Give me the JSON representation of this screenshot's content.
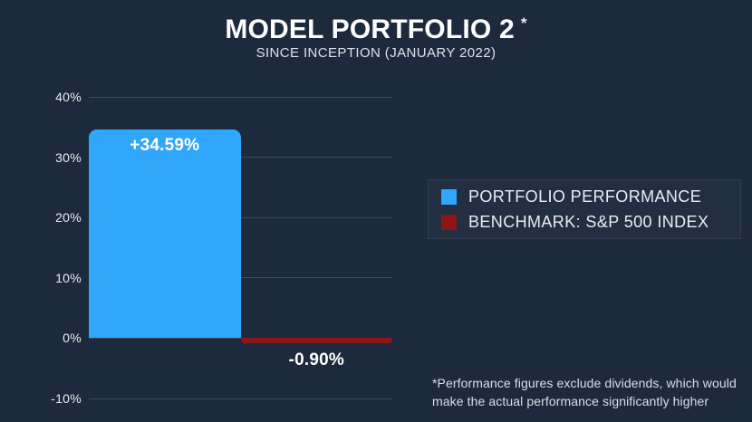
{
  "theme": {
    "background": "#1D2A3E",
    "portfolio_color": "#31A7FB",
    "benchmark_color": "#8E1518",
    "gridline_color": "#3E4A5F",
    "text_color": "#FFFFFF"
  },
  "header": {
    "title": "MODEL PORTFOLIO 2",
    "title_asterisk": "*",
    "subtitle": "SINCE INCEPTION (JANUARY 2022)"
  },
  "chart_data": {
    "type": "bar",
    "categories": [
      "PORTFOLIO PERFORMANCE",
      "BENCHMARK: S&P 500 INDEX"
    ],
    "values": [
      34.59,
      -0.9
    ],
    "value_labels": [
      "+34.59%",
      "-0.90%"
    ],
    "colors": [
      "#31A7FB",
      "#8E1518"
    ],
    "title": "MODEL PORTFOLIO 2",
    "subtitle": "SINCE INCEPTION (JANUARY 2022)",
    "xlabel": "",
    "ylabel": "",
    "y_axis": {
      "min": -10,
      "max": 40,
      "ticks": [
        "40%",
        "30%",
        "20%",
        "10%",
        "0%",
        "-10%"
      ],
      "tick_values": [
        40,
        30,
        20,
        10,
        0,
        -10
      ]
    },
    "grid": true,
    "legend_position": "right"
  },
  "legend": {
    "items": [
      {
        "label": "PORTFOLIO PERFORMANCE",
        "color": "#31A7FB"
      },
      {
        "label": "BENCHMARK: S&P 500 INDEX",
        "color": "#8E1518"
      }
    ]
  },
  "footnote": "*Performance figures exclude dividends, which would make the actual performance significantly higher"
}
